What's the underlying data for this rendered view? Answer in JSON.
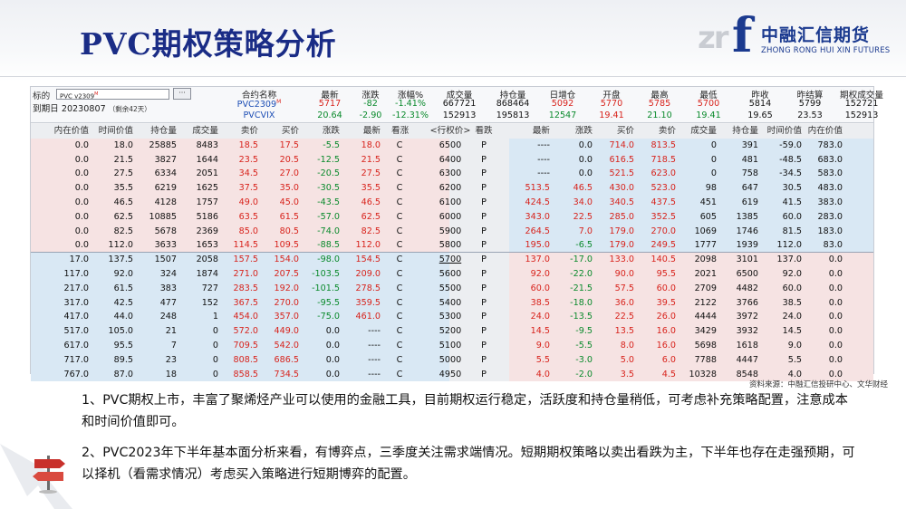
{
  "slide": {
    "title": "PVC期权策略分析",
    "logo_cn": "中融汇信期货",
    "logo_en": "ZHONG RONG HUI XIN FUTURES",
    "logo_mark": "zr",
    "logo_f": "f",
    "source": "资料来源：中融汇信投研中心、文华财经",
    "para1": "1、PVC期权上市，丰富了聚烯烃产业可以使用的金融工具，目前期权运行稳定，活跃度和持仓量稍低，可考虑补充策略配置，注意成本和时间价值即可。",
    "para2": "2、PVC2023年下半年基本面分析来看，有博弈点，三季度关注需求端情况。短期期权策略以卖出看跌为主，下半年也存在走强预期，可以择机（看需求情况）考虑买入策略进行短期博弈的配置。"
  },
  "quote_header": {
    "label_contract": "标的",
    "contract_value": "PVC v2309",
    "contract_badge": "M",
    "dots": "···",
    "label_expiry": "到期日",
    "expiry_date": "20230807",
    "remaining": "（剩余42天）",
    "columns": [
      "合约名称",
      "最新",
      "涨跌",
      "涨幅%",
      "成交量",
      "持仓量",
      "日增仓",
      "开盘",
      "最高",
      "最低",
      "昨收",
      "昨结算",
      "期权成交量"
    ],
    "rows": [
      {
        "name": "PVC2309",
        "badge": "M",
        "values": [
          "5717",
          "-82",
          "-1.41%",
          "667721",
          "868464",
          "5092",
          "5770",
          "5785",
          "5700",
          "5814",
          "5799",
          "152721"
        ]
      },
      {
        "name": "PVCVIX",
        "badge": "",
        "values": [
          "20.64",
          "-2.90",
          "-12.31%",
          "152913",
          "195813",
          "12547",
          "19.41",
          "21.10",
          "19.41",
          "19.65",
          "23.53",
          "152913"
        ]
      }
    ]
  },
  "chain": {
    "headers": [
      "内在价值",
      "时间价值",
      "持仓量",
      "成交量",
      "卖价",
      "买价",
      "涨跌",
      "最新",
      "看涨",
      "<行权价>",
      "看跌",
      "最新",
      "涨跌",
      "买价",
      "卖价",
      "成交量",
      "持仓量",
      "时间价值",
      "内在价值"
    ],
    "rows": [
      [
        "0.0",
        "18.0",
        "25885",
        "8483",
        "18.5",
        "17.5",
        "-5.5",
        "18.0",
        "C",
        "6500",
        "P",
        "----",
        "0.0",
        "714.0",
        "813.5",
        "0",
        "391",
        "-59.0",
        "783.0"
      ],
      [
        "0.0",
        "21.5",
        "3827",
        "1644",
        "23.5",
        "20.5",
        "-12.5",
        "21.5",
        "C",
        "6400",
        "P",
        "----",
        "0.0",
        "616.5",
        "718.5",
        "0",
        "481",
        "-48.5",
        "683.0"
      ],
      [
        "0.0",
        "27.5",
        "6334",
        "2051",
        "34.5",
        "27.0",
        "-20.5",
        "27.5",
        "C",
        "6300",
        "P",
        "----",
        "0.0",
        "521.5",
        "623.0",
        "0",
        "758",
        "-34.5",
        "583.0"
      ],
      [
        "0.0",
        "35.5",
        "6219",
        "1625",
        "37.5",
        "35.0",
        "-30.5",
        "35.5",
        "C",
        "6200",
        "P",
        "513.5",
        "46.5",
        "430.0",
        "523.0",
        "98",
        "647",
        "30.5",
        "483.0"
      ],
      [
        "0.0",
        "46.5",
        "4128",
        "1757",
        "49.0",
        "45.0",
        "-43.5",
        "46.5",
        "C",
        "6100",
        "P",
        "424.5",
        "34.0",
        "340.5",
        "437.5",
        "451",
        "619",
        "41.5",
        "383.0"
      ],
      [
        "0.0",
        "62.5",
        "10885",
        "5186",
        "63.5",
        "61.5",
        "-57.0",
        "62.5",
        "C",
        "6000",
        "P",
        "343.0",
        "22.5",
        "285.0",
        "352.5",
        "605",
        "1385",
        "60.0",
        "283.0"
      ],
      [
        "0.0",
        "82.5",
        "5678",
        "2369",
        "85.0",
        "80.5",
        "-74.0",
        "82.5",
        "C",
        "5900",
        "P",
        "264.5",
        "7.0",
        "179.0",
        "270.0",
        "1069",
        "1746",
        "81.5",
        "183.0"
      ],
      [
        "0.0",
        "112.0",
        "3633",
        "1653",
        "114.5",
        "109.5",
        "-88.5",
        "112.0",
        "C",
        "5800",
        "P",
        "195.0",
        "-6.5",
        "179.0",
        "249.5",
        "1777",
        "1939",
        "112.0",
        "83.0"
      ],
      [
        "17.0",
        "137.5",
        "1507",
        "2058",
        "157.5",
        "154.0",
        "-98.0",
        "154.5",
        "C",
        "5700",
        "P",
        "137.0",
        "-17.0",
        "133.0",
        "140.5",
        "2098",
        "3101",
        "137.0",
        "0.0"
      ],
      [
        "117.0",
        "92.0",
        "324",
        "1874",
        "271.0",
        "207.5",
        "-103.5",
        "209.0",
        "C",
        "5600",
        "P",
        "92.0",
        "-22.0",
        "90.0",
        "95.5",
        "2021",
        "6500",
        "92.0",
        "0.0"
      ],
      [
        "217.0",
        "61.5",
        "383",
        "727",
        "283.5",
        "192.0",
        "-101.5",
        "278.5",
        "C",
        "5500",
        "P",
        "60.0",
        "-21.5",
        "57.5",
        "60.0",
        "2709",
        "4482",
        "60.0",
        "0.0"
      ],
      [
        "317.0",
        "42.5",
        "477",
        "152",
        "367.5",
        "270.0",
        "-95.5",
        "359.5",
        "C",
        "5400",
        "P",
        "38.5",
        "-18.0",
        "36.0",
        "39.5",
        "2122",
        "3766",
        "38.5",
        "0.0"
      ],
      [
        "417.0",
        "44.0",
        "248",
        "1",
        "454.0",
        "357.0",
        "-75.0",
        "461.0",
        "C",
        "5300",
        "P",
        "24.0",
        "-13.5",
        "22.5",
        "26.0",
        "4444",
        "3972",
        "24.0",
        "0.0"
      ],
      [
        "517.0",
        "105.0",
        "21",
        "0",
        "572.0",
        "449.0",
        "0.0",
        "----",
        "C",
        "5200",
        "P",
        "14.5",
        "-9.5",
        "13.5",
        "16.0",
        "3429",
        "3932",
        "14.5",
        "0.0"
      ],
      [
        "617.0",
        "95.5",
        "7",
        "0",
        "709.5",
        "542.0",
        "0.0",
        "----",
        "C",
        "5100",
        "P",
        "9.0",
        "-5.5",
        "8.0",
        "16.0",
        "5698",
        "1618",
        "9.0",
        "0.0"
      ],
      [
        "717.0",
        "89.5",
        "23",
        "0",
        "808.5",
        "686.5",
        "0.0",
        "----",
        "C",
        "5000",
        "P",
        "5.5",
        "-3.0",
        "5.0",
        "6.0",
        "7788",
        "4447",
        "5.5",
        "0.0"
      ],
      [
        "767.0",
        "87.0",
        "18",
        "0",
        "858.5",
        "734.5",
        "0.0",
        "----",
        "C",
        "4950",
        "P",
        "4.0",
        "-2.0",
        "3.5",
        "4.5",
        "10328",
        "8548",
        "4.0",
        "0.0"
      ]
    ]
  },
  "colors": {
    "up": "#d8231c",
    "down": "#0a8a2c",
    "title": "#1a2c86"
  },
  "icons": {
    "signpost": "signpost-icon"
  }
}
